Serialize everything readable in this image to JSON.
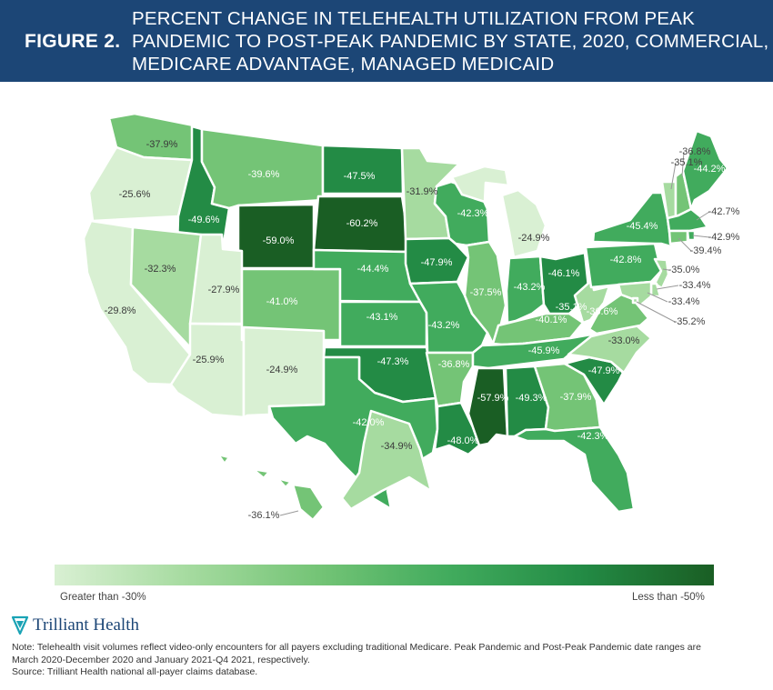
{
  "header": {
    "figure_label": "FIGURE 2.",
    "title_lines": [
      "PERCENT CHANGE IN TELEHEALTH UTILIZATION FROM PEAK",
      "PANDEMIC TO POST-PEAK PANDEMIC BY STATE, 2020, COMMERCIAL,",
      "MEDICARE ADVANTAGE, MANAGED MEDICAID"
    ]
  },
  "colors": {
    "header_bg": "#1c4676",
    "scale": [
      "#d9f0d3",
      "#a6dba0",
      "#74c476",
      "#41ab5d",
      "#238b45",
      "#1a5e24"
    ]
  },
  "legend": {
    "left_label": "Greater than -30%",
    "right_label": "Less than -50%"
  },
  "brand": {
    "name": "Trilliant Health",
    "icon": "trilliant-logo-icon"
  },
  "notes": [
    "Note: Telehealth visit volumes reflect video-only encounters for all payers excluding traditional Medicare. Peak Pandemic and Post-Peak Pandemic date ranges are",
    "March 2020-December 2020 and January 2021-Q4 2021, respectively.",
    "Source: Trilliant Health national all-payer claims database."
  ],
  "map_data": {
    "metric": "Percent change in telehealth utilization",
    "states": [
      {
        "id": "WA",
        "label": "-37.9%",
        "value": -37.9
      },
      {
        "id": "OR",
        "label": "-25.6%",
        "value": -25.6
      },
      {
        "id": "CA",
        "label": "-29.8%",
        "value": -29.8
      },
      {
        "id": "ID",
        "label": "-49.6%",
        "value": -49.6
      },
      {
        "id": "NV",
        "label": "-32.3%",
        "value": -32.3
      },
      {
        "id": "MT",
        "label": "-39.6%",
        "value": -39.6
      },
      {
        "id": "WY",
        "label": "-59.0%",
        "value": -59.0
      },
      {
        "id": "UT",
        "label": "-27.9%",
        "value": -27.9
      },
      {
        "id": "AZ",
        "label": "-25.9%",
        "value": -25.9
      },
      {
        "id": "CO",
        "label": "-41.0%",
        "value": -41.0
      },
      {
        "id": "NM",
        "label": "-24.9%",
        "value": -24.9
      },
      {
        "id": "ND",
        "label": "-47.5%",
        "value": -47.5
      },
      {
        "id": "SD",
        "label": "-60.2%",
        "value": -60.2
      },
      {
        "id": "NE",
        "label": "-44.4%",
        "value": -44.4
      },
      {
        "id": "KS",
        "label": "-43.1%",
        "value": -43.1
      },
      {
        "id": "OK",
        "label": "-47.3%",
        "value": -47.3
      },
      {
        "id": "TX",
        "label": "-42.0%",
        "value": -42.0
      },
      {
        "id": "MN",
        "label": "-31.9%",
        "value": -31.9
      },
      {
        "id": "IA",
        "label": "-47.9%",
        "value": -47.9
      },
      {
        "id": "MO",
        "label": "-43.2%",
        "value": -43.2
      },
      {
        "id": "AR",
        "label": "-36.8%",
        "value": -36.8
      },
      {
        "id": "LA",
        "label": "-48.0%",
        "value": -48.0
      },
      {
        "id": "WI",
        "label": "-42.3%",
        "value": -42.3
      },
      {
        "id": "IL",
        "label": "-37.5%",
        "value": -37.5
      },
      {
        "id": "MI",
        "label": "-24.9%",
        "value": -24.9
      },
      {
        "id": "IN",
        "label": "-43.2%",
        "value": -43.2
      },
      {
        "id": "OH",
        "label": "-46.1%",
        "value": -46.1
      },
      {
        "id": "KY",
        "label": "-40.1%",
        "value": -40.1
      },
      {
        "id": "TN",
        "label": "-45.9%",
        "value": -45.9
      },
      {
        "id": "MS",
        "label": "-57.9%",
        "value": -57.9
      },
      {
        "id": "AL",
        "label": "-49.3%",
        "value": -49.3
      },
      {
        "id": "GA",
        "label": "-37.9%",
        "value": -37.9
      },
      {
        "id": "FL",
        "label": "-42.3%",
        "value": -42.3
      },
      {
        "id": "SC",
        "label": "-47.9%",
        "value": -47.9
      },
      {
        "id": "NC",
        "label": "-33.0%",
        "value": -33.0
      },
      {
        "id": "VA",
        "label": "-36.6%",
        "value": -36.6
      },
      {
        "id": "WV",
        "label": "-35.1%",
        "value": -35.1
      },
      {
        "id": "PA",
        "label": "-42.8%",
        "value": -42.8
      },
      {
        "id": "NY",
        "label": "-45.4%",
        "value": -45.4
      },
      {
        "id": "VT",
        "label": "-35.1%",
        "value": -35.1
      },
      {
        "id": "NH",
        "label": "-36.8%",
        "value": -36.8
      },
      {
        "id": "ME",
        "label": "-44.2%",
        "value": -44.2
      },
      {
        "id": "MA",
        "label": "-42.7%",
        "value": -42.7
      },
      {
        "id": "RI",
        "label": "-42.9%",
        "value": -42.9
      },
      {
        "id": "CT",
        "label": "-39.4%",
        "value": -39.4
      },
      {
        "id": "NJ",
        "label": "-35.0%",
        "value": -35.0
      },
      {
        "id": "DE",
        "label": "-33.4%",
        "value": -33.4
      },
      {
        "id": "MD",
        "label": "-33.4%",
        "value": -33.4
      },
      {
        "id": "DC",
        "label": "-35.2%",
        "value": -35.2
      },
      {
        "id": "AK",
        "label": "-34.9%",
        "value": -34.9
      },
      {
        "id": "HI",
        "label": "-36.1%",
        "value": -36.1
      }
    ]
  }
}
